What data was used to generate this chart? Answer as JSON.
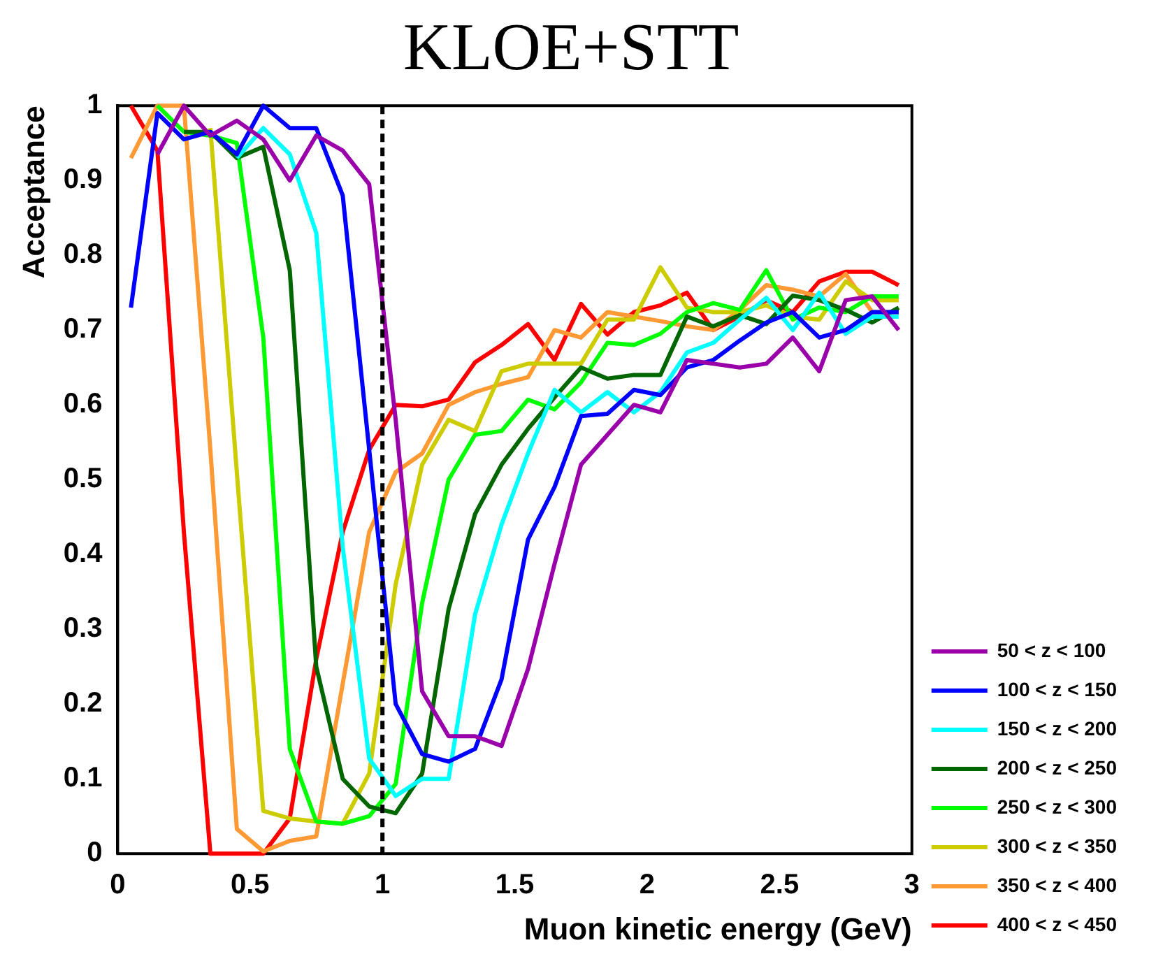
{
  "chart_data": {
    "type": "line",
    "title": "KLOE+STT",
    "xlabel": "Muon kinetic energy (GeV)",
    "ylabel": "Acceptance",
    "x": [
      0.05,
      0.15,
      0.25,
      0.35,
      0.45,
      0.55,
      0.65,
      0.75,
      0.85,
      0.95,
      1.05,
      1.15,
      1.25,
      1.35,
      1.45,
      1.55,
      1.65,
      1.75,
      1.85,
      1.95,
      2.05,
      2.15,
      2.25,
      2.35,
      2.45,
      2.55,
      2.65,
      2.75,
      2.85,
      2.95
    ],
    "xlim": [
      0,
      3
    ],
    "xticks": [
      0,
      0.5,
      1,
      1.5,
      2,
      2.5,
      3
    ],
    "ylim": [
      0,
      1
    ],
    "yticks": [
      0,
      0.1,
      0.2,
      0.3,
      0.4,
      0.5,
      0.6,
      0.7,
      0.8,
      0.9,
      1
    ],
    "grid": false,
    "legend": "bottom right",
    "marker": "none",
    "line_style": "solid",
    "ref_lines": [
      {
        "axis": "x",
        "value": 1,
        "color": "#000000",
        "line_style": "dashed"
      }
    ],
    "series": [
      {
        "name": "50 < z < 100",
        "color": "#9900aa",
        "values": [
          null,
          0.935,
          1.0,
          0.96,
          0.98,
          0.955,
          0.9,
          0.96,
          0.94,
          0.895,
          0.58,
          0.217,
          0.157,
          0.157,
          0.144,
          0.247,
          0.387,
          0.52,
          0.56,
          0.6,
          0.59,
          0.66,
          0.655,
          0.65,
          0.655,
          0.69,
          0.645,
          0.74,
          0.745,
          0.7
        ]
      },
      {
        "name": "100 < z < 150",
        "color": "#0000ff",
        "values": [
          0.73,
          0.99,
          0.955,
          0.965,
          0.935,
          1.0,
          0.97,
          0.97,
          0.88,
          0.54,
          0.2,
          0.133,
          0.123,
          0.14,
          0.233,
          0.42,
          0.49,
          0.585,
          0.588,
          0.62,
          0.613,
          0.65,
          0.66,
          0.686,
          0.71,
          0.724,
          0.69,
          0.7,
          0.724,
          0.724
        ]
      },
      {
        "name": "150 < z < 200",
        "color": "#00ffff",
        "values": [
          null,
          null,
          null,
          null,
          0.93,
          0.97,
          0.935,
          0.83,
          0.41,
          0.127,
          0.077,
          0.1,
          0.1,
          0.32,
          0.44,
          0.535,
          0.62,
          0.59,
          0.617,
          0.59,
          0.617,
          0.67,
          0.683,
          0.714,
          0.743,
          0.7,
          0.75,
          0.695,
          0.718,
          0.718
        ]
      },
      {
        "name": "200 < z < 250",
        "color": "#006600",
        "values": [
          null,
          null,
          0.965,
          0.965,
          0.93,
          0.945,
          0.78,
          0.25,
          0.1,
          0.063,
          0.054,
          0.107,
          0.327,
          0.454,
          0.52,
          0.568,
          0.61,
          0.65,
          0.635,
          0.64,
          0.64,
          0.718,
          0.705,
          0.72,
          0.708,
          0.746,
          0.74,
          0.727,
          0.71,
          0.73
        ]
      },
      {
        "name": "250 < z < 300",
        "color": "#00ff00",
        "values": [
          null,
          1.0,
          0.965,
          0.96,
          0.95,
          0.69,
          0.14,
          0.043,
          0.04,
          0.05,
          0.093,
          0.335,
          0.5,
          0.56,
          0.565,
          0.607,
          0.594,
          0.63,
          0.683,
          0.68,
          0.695,
          0.724,
          0.736,
          0.727,
          0.78,
          0.714,
          0.73,
          0.724,
          0.745,
          0.745
        ]
      },
      {
        "name": "300 < z < 350",
        "color": "#cccc00",
        "values": [
          null,
          null,
          null,
          0.97,
          0.51,
          0.057,
          0.047,
          0.043,
          0.04,
          0.107,
          0.36,
          0.52,
          0.58,
          0.565,
          0.645,
          0.655,
          0.655,
          0.655,
          0.714,
          0.714,
          0.784,
          0.73,
          0.724,
          0.724,
          0.733,
          0.718,
          0.714,
          0.765,
          0.74,
          0.74
        ]
      },
      {
        "name": "350 < z < 400",
        "color": "#ff9933",
        "values": [
          0.93,
          1.0,
          1.0,
          0.54,
          0.033,
          0.003,
          0.017,
          0.023,
          0.227,
          0.43,
          0.51,
          0.535,
          0.6,
          0.617,
          0.628,
          0.637,
          0.7,
          0.69,
          0.724,
          0.718,
          0.712,
          0.705,
          0.7,
          0.727,
          0.76,
          0.754,
          0.745,
          0.775,
          0.724,
          0.724
        ]
      },
      {
        "name": "400 < z < 450",
        "color": "#ff0000",
        "values": [
          1.0,
          0.94,
          0.43,
          0.0,
          0.0,
          0.0,
          0.047,
          0.26,
          0.43,
          0.54,
          0.6,
          0.598,
          0.607,
          0.657,
          0.68,
          0.708,
          0.66,
          0.735,
          0.694,
          0.724,
          0.733,
          0.75,
          0.7,
          0.718,
          0.74,
          0.724,
          0.765,
          0.778,
          0.778,
          0.76
        ]
      }
    ]
  }
}
